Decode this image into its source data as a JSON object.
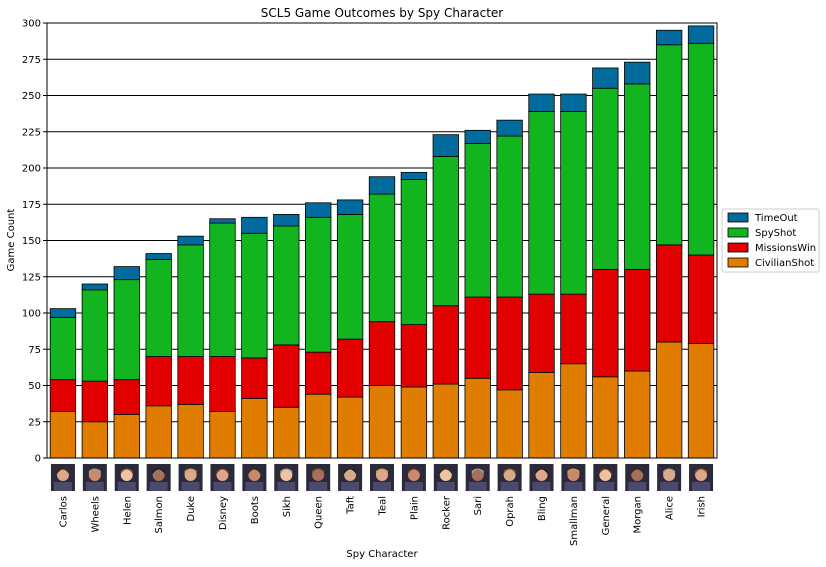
{
  "chart_data": {
    "type": "bar",
    "stacked": true,
    "title": "SCL5 Game Outcomes by Spy Character",
    "xlabel": "Spy Character",
    "ylabel": "Game Count",
    "ylim": [
      0,
      300
    ],
    "yticks": [
      0,
      25,
      50,
      75,
      100,
      125,
      150,
      175,
      200,
      225,
      250,
      275,
      300
    ],
    "grid": "horizontal",
    "legend_position": "right",
    "categories": [
      "Carlos",
      "Wheels",
      "Helen",
      "Salmon",
      "Duke",
      "Disney",
      "Boots",
      "Sikh",
      "Queen",
      "Taft",
      "Teal",
      "Plain",
      "Rocker",
      "Sari",
      "Oprah",
      "Bling",
      "Smallman",
      "General",
      "Morgan",
      "Alice",
      "Irish"
    ],
    "series": [
      {
        "name": "CivilianShot",
        "color": "#e07c00",
        "values": [
          32,
          25,
          30,
          36,
          37,
          32,
          41,
          35,
          44,
          42,
          50,
          49,
          51,
          55,
          47,
          59,
          65,
          56,
          60,
          80,
          79
        ]
      },
      {
        "name": "MissionsWin",
        "color": "#e20000",
        "values": [
          22,
          28,
          24,
          34,
          33,
          38,
          28,
          43,
          29,
          40,
          44,
          43,
          54,
          56,
          64,
          54,
          48,
          74,
          70,
          67,
          61
        ]
      },
      {
        "name": "SpyShot",
        "color": "#12b51f",
        "values": [
          43,
          63,
          69,
          67,
          77,
          92,
          86,
          82,
          93,
          86,
          88,
          100,
          103,
          106,
          111,
          126,
          126,
          125,
          128,
          138,
          146
        ]
      },
      {
        "name": "TimeOut",
        "color": "#006b9c",
        "values": [
          6,
          4,
          9,
          4,
          6,
          3,
          11,
          8,
          10,
          10,
          12,
          5,
          15,
          9,
          11,
          12,
          12,
          14,
          15,
          10,
          12
        ]
      }
    ],
    "legend_order": [
      "TimeOut",
      "SpyShot",
      "MissionsWin",
      "CivilianShot"
    ]
  }
}
